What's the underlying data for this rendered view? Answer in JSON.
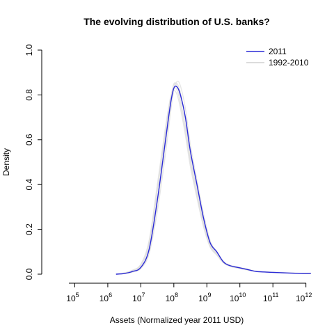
{
  "chart_data": {
    "type": "line",
    "title": "The evolving distribution of U.S. banks?",
    "xlabel": "Assets (Normalized year 2011 USD)",
    "ylabel": "Density",
    "x_scale": "log10",
    "xlim": [
      10000,
      1500000000000
    ],
    "ylim": [
      0,
      1.0
    ],
    "x_ticks": [
      {
        "value": 100000,
        "base": "10",
        "exp": "5"
      },
      {
        "value": 1000000,
        "base": "10",
        "exp": "6"
      },
      {
        "value": 10000000,
        "base": "10",
        "exp": "7"
      },
      {
        "value": 100000000,
        "base": "10",
        "exp": "8"
      },
      {
        "value": 1000000000,
        "base": "10",
        "exp": "9"
      },
      {
        "value": 10000000000,
        "base": "10",
        "exp": "10"
      },
      {
        "value": 100000000000,
        "base": "10",
        "exp": "11"
      },
      {
        "value": 1000000000000,
        "base": "10",
        "exp": "12"
      }
    ],
    "y_ticks": [
      "0.0",
      "0.2",
      "0.4",
      "0.6",
      "0.8",
      "1.0"
    ],
    "legend_position": "top-right",
    "series": [
      {
        "name": "2011",
        "color": "#2a2ad6",
        "x": [
          1778279,
          3162278,
          5623413,
          10000000,
          17782794,
          31622777,
          56234133,
          79432823,
          100000000,
          125892541,
          158489319,
          223872114,
          316227766,
          501187234,
          794328235,
          1258925412,
          1995262315,
          3162277660,
          5011872336,
          10000000000,
          17782794100,
          31622776602,
          100000000000,
          316227766017,
          1000000000000,
          1412537544623
        ],
        "values": [
          0.0,
          0.003,
          0.012,
          0.03,
          0.11,
          0.33,
          0.6,
          0.76,
          0.83,
          0.835,
          0.8,
          0.7,
          0.55,
          0.4,
          0.25,
          0.14,
          0.1,
          0.055,
          0.038,
          0.028,
          0.02,
          0.012,
          0.008,
          0.005,
          0.003,
          0.004
        ]
      },
      {
        "name": "1992-2010",
        "color": "#dcdcdc",
        "variants": [
          {
            "x": [
              1778279,
              3162278,
              5623413,
              10000000,
              17782794,
              31622777,
              56234133,
              79432823,
              100000000,
              125892541,
              158489319,
              223872114,
              316227766,
              501187234,
              794328235,
              1258925412,
              1995262315,
              3162277660,
              5011872336,
              10000000000,
              17782794100,
              31622776602,
              100000000000,
              316227766017,
              1000000000000,
              1412537544623
            ],
            "values": [
              0.0,
              0.006,
              0.018,
              0.045,
              0.15,
              0.4,
              0.66,
              0.79,
              0.82,
              0.8,
              0.74,
              0.62,
              0.48,
              0.34,
              0.21,
              0.12,
              0.085,
              0.05,
              0.035,
              0.025,
              0.018,
              0.012,
              0.008,
              0.005,
              0.003,
              0.003
            ]
          },
          {
            "x": [
              1778279,
              3162278,
              5623413,
              10000000,
              17782794,
              31622777,
              56234133,
              79432823,
              100000000,
              125892541,
              158489319,
              223872114,
              316227766,
              501187234,
              794328235,
              1258925412,
              1995262315,
              3162277660,
              5011872336,
              10000000000,
              17782794100,
              31622776602,
              100000000000,
              316227766017,
              1000000000000,
              1412537544623
            ],
            "values": [
              0.0,
              0.004,
              0.015,
              0.038,
              0.13,
              0.37,
              0.63,
              0.78,
              0.85,
              0.84,
              0.78,
              0.66,
              0.51,
              0.36,
              0.23,
              0.13,
              0.09,
              0.052,
              0.036,
              0.026,
              0.019,
              0.012,
              0.008,
              0.005,
              0.003,
              0.003
            ]
          },
          {
            "x": [
              1778279,
              3162278,
              5623413,
              10000000,
              17782794,
              31622777,
              56234133,
              79432823,
              100000000,
              125892541,
              158489319,
              223872114,
              316227766,
              501187234,
              794328235,
              1258925412,
              1995262315,
              3162277660,
              5011872336,
              10000000000,
              17782794100,
              31622776602,
              100000000000,
              316227766017,
              1000000000000,
              1412537544623
            ],
            "values": [
              0.0,
              0.002,
              0.009,
              0.025,
              0.09,
              0.28,
              0.54,
              0.72,
              0.82,
              0.86,
              0.84,
              0.74,
              0.58,
              0.42,
              0.27,
              0.15,
              0.1,
              0.058,
              0.04,
              0.03,
              0.022,
              0.013,
              0.009,
              0.006,
              0.003,
              0.004
            ]
          },
          {
            "x": [
              1778279,
              3162278,
              5623413,
              10000000,
              17782794,
              31622777,
              56234133,
              79432823,
              100000000,
              125892541,
              158489319,
              223872114,
              316227766,
              501187234,
              794328235,
              1258925412,
              1995262315,
              3162277660,
              5011872336,
              10000000000,
              17782794100,
              31622776602,
              100000000000,
              316227766017,
              1000000000000,
              1412537544623
            ],
            "values": [
              0.0,
              0.003,
              0.011,
              0.028,
              0.1,
              0.31,
              0.58,
              0.75,
              0.84,
              0.85,
              0.81,
              0.69,
              0.53,
              0.38,
              0.24,
              0.135,
              0.095,
              0.054,
              0.037,
              0.027,
              0.02,
              0.012,
              0.008,
              0.005,
              0.003,
              0.003
            ]
          },
          {
            "x": [
              1778279,
              3162278,
              5623413,
              10000000,
              17782794,
              31622777,
              56234133,
              79432823,
              100000000,
              125892541,
              158489319,
              223872114,
              316227766,
              501187234,
              794328235,
              1258925412,
              1995262315,
              3162277660,
              5011872336,
              10000000000,
              17782794100,
              31622776602,
              100000000000,
              316227766017,
              1000000000000,
              1412537544623
            ],
            "values": [
              0.0,
              0.005,
              0.016,
              0.04,
              0.14,
              0.38,
              0.64,
              0.78,
              0.83,
              0.82,
              0.76,
              0.64,
              0.5,
              0.35,
              0.22,
              0.125,
              0.088,
              0.051,
              0.035,
              0.025,
              0.018,
              0.012,
              0.008,
              0.005,
              0.003,
              0.003
            ]
          }
        ]
      }
    ]
  }
}
